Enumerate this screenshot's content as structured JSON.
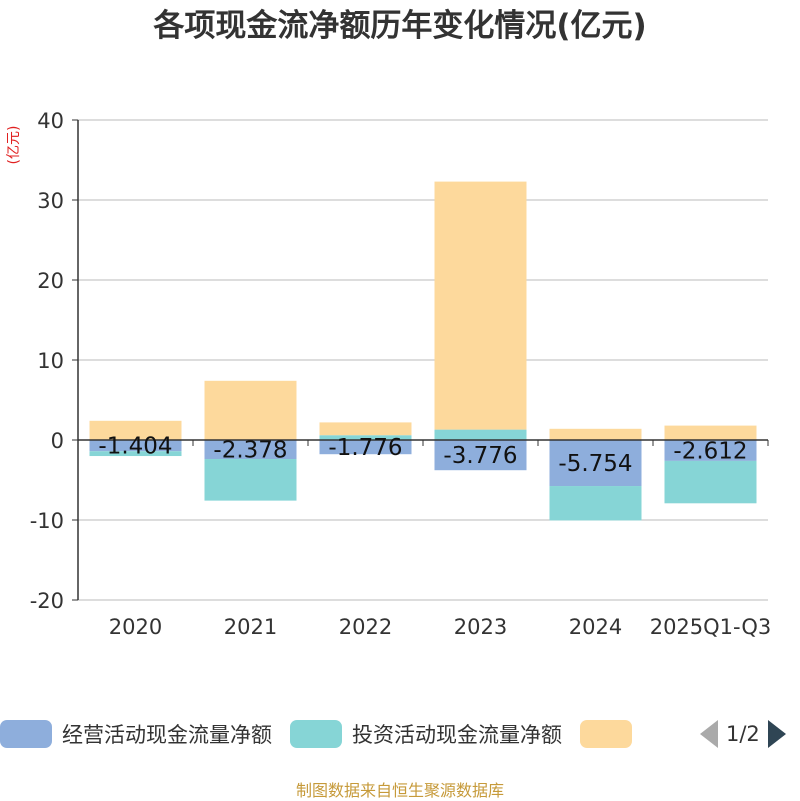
{
  "chart_data": {
    "type": "bar",
    "stacked": true,
    "title": "各项现金流净额历年变化情况(亿元)",
    "unit_label": "(亿元)",
    "categories": [
      "2020",
      "2021",
      "2022",
      "2023",
      "2024",
      "2025Q1-Q3"
    ],
    "ylim": [
      -20,
      40
    ],
    "yticks": [
      40,
      30,
      20,
      10,
      0,
      -10,
      -20
    ],
    "grid": true,
    "legend_position": "bottom",
    "series": [
      {
        "name": "经营活动现金流量净额",
        "color": "#8eaedc",
        "values": [
          -1.404,
          -2.378,
          -1.776,
          -3.776,
          -5.754,
          -2.612
        ],
        "labels": [
          "-1.404",
          "-2.378",
          "-1.776",
          "-3.776",
          "-5.754",
          "-2.612"
        ]
      },
      {
        "name": "投资活动现金流量净额",
        "color": "#86d5d6",
        "values": [
          -0.6,
          -5.2,
          0.6,
          1.3,
          -4.3,
          -5.3
        ]
      },
      {
        "name": "",
        "color": "#fdd99c",
        "values": [
          2.4,
          7.4,
          1.6,
          31.0,
          1.4,
          1.8
        ]
      }
    ]
  },
  "legend": {
    "page": "1/2"
  },
  "footer": "制图数据来自恒生聚源数据库"
}
